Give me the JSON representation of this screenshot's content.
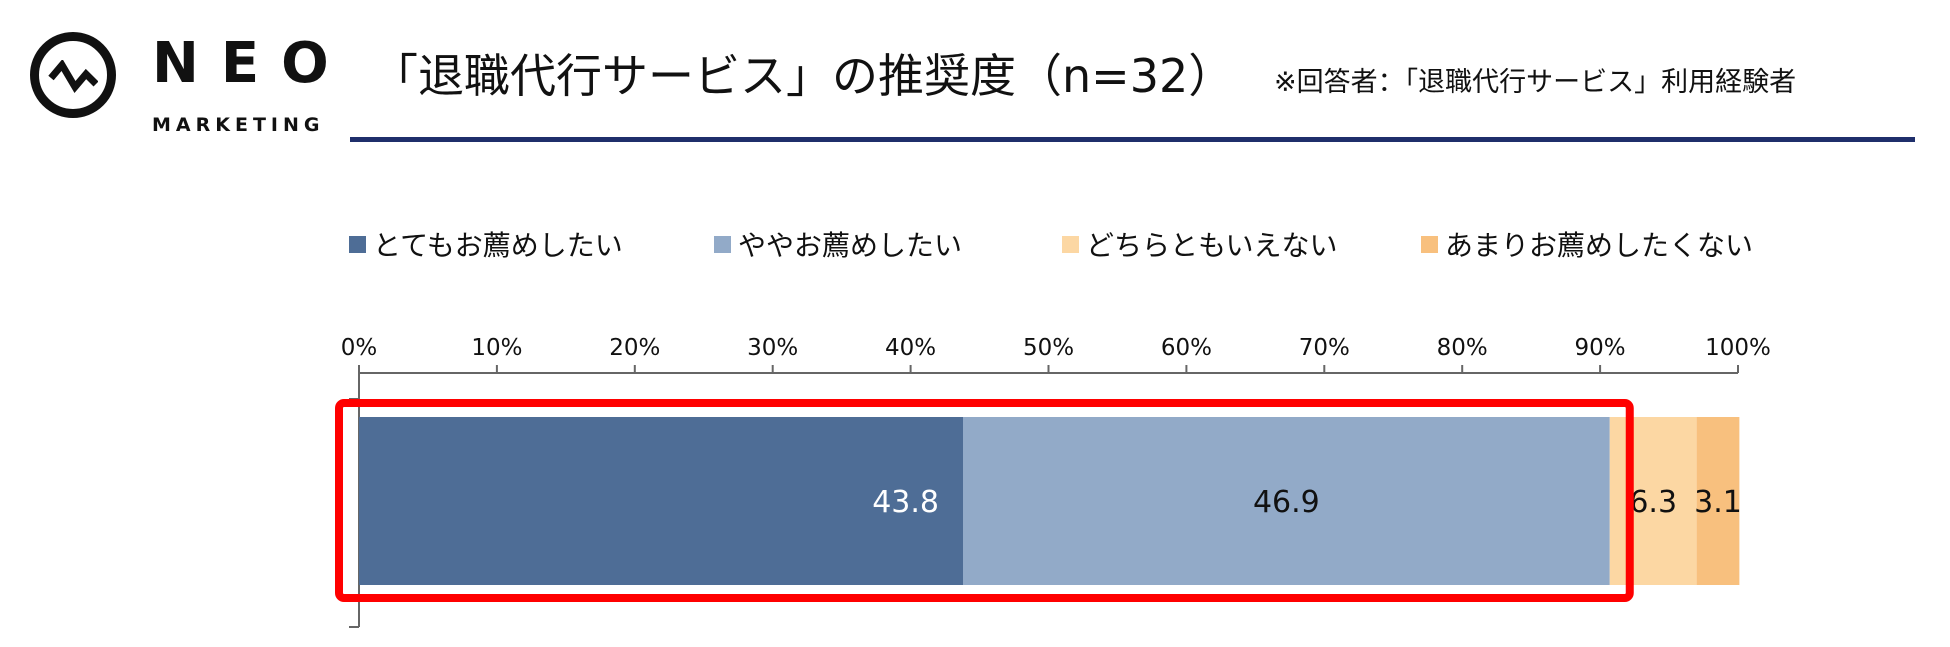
{
  "logo": {
    "name": "NEO",
    "sub": "MARKETING"
  },
  "title": "「退職代行サービス」の推奨度（n=32）",
  "subtitle": "※回答者：「退職代行サービス」利用経験者",
  "chart_data": {
    "type": "bar",
    "orientation": "horizontal",
    "stacked": true,
    "unit": "%",
    "xlim": [
      0,
      100
    ],
    "xticks": [
      "0%",
      "10%",
      "20%",
      "30%",
      "40%",
      "50%",
      "60%",
      "70%",
      "80%",
      "90%",
      "100%"
    ],
    "legend_position": "top",
    "series": [
      {
        "name": "とてもお薦めしたい",
        "value": 43.8,
        "label": "43.8",
        "color": "#4e6d96",
        "label_color": "#ffffff"
      },
      {
        "name": "ややお薦めしたい",
        "value": 46.9,
        "label": "46.9",
        "color": "#92aac8",
        "label_color": "#111111"
      },
      {
        "name": "どちらともいえない",
        "value": 6.3,
        "label": "6.3",
        "color": "#fcd7a3",
        "label_color": "#111111"
      },
      {
        "name": "あまりお薦めしたくない",
        "value": 3.1,
        "label": "3.1",
        "color": "#f8c07e",
        "label_color": "#111111"
      }
    ],
    "highlight": {
      "from": 0,
      "to": 90.7,
      "color": "#ff0000"
    }
  },
  "colors": {
    "title_rule": "#1f2f6b",
    "axis": "#666666"
  }
}
